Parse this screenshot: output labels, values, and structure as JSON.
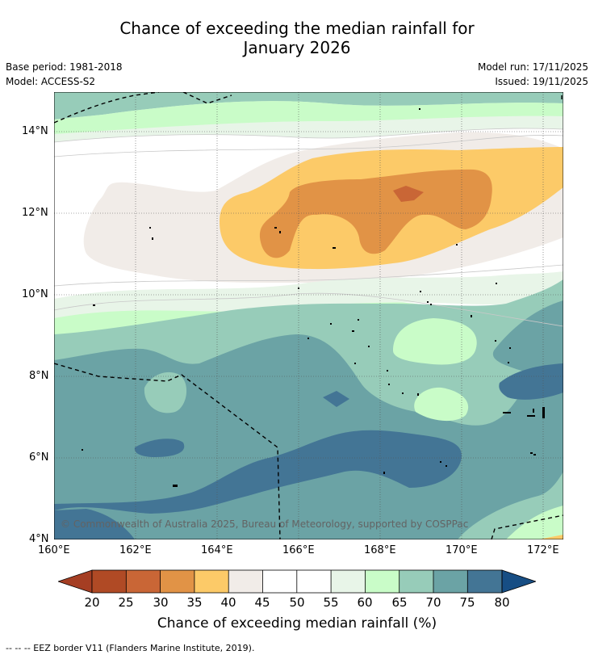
{
  "title": {
    "line1": "Chance of exceeding the median rainfall for",
    "line2": "January 2026"
  },
  "meta": {
    "base_period": "Base period: 1981-2018",
    "model": "Model: ACCESS-S2",
    "model_run": "Model run: 17/11/2025",
    "issued": "Issued: 19/11/2025"
  },
  "map": {
    "lat_labels": [
      "14°N",
      "12°N",
      "10°N",
      "8°N",
      "6°N",
      "4°N"
    ],
    "lon_labels": [
      "160°E",
      "162°E",
      "164°E",
      "166°E",
      "168°E",
      "170°E",
      "172°E"
    ],
    "copyright": "© Commonwealth of Australia 2025, Bureau of Meteorology, supported by COSPPac",
    "colors": {
      "c20": "#a53e23",
      "c25": "#b04a25",
      "c30": "#c96636",
      "c35": "#e19346",
      "c40": "#fcca68",
      "c45": "#f1ece8",
      "c50": "#ffffff",
      "c55": "#ffffff",
      "c60": "#e8f5e8",
      "c65": "#c9fcc8",
      "c70": "#97ccb9",
      "c75": "#6ba3a5",
      "c80": "#437595",
      "c85": "#174e84"
    }
  },
  "colorbar": {
    "labels": [
      "20",
      "25",
      "30",
      "35",
      "40",
      "45",
      "50",
      "55",
      "60",
      "65",
      "70",
      "75",
      "80"
    ],
    "title": "Chance of exceeding median rainfall (%)"
  },
  "footer": {
    "legend": "--  --  -- EEZ border V11 (Flanders Marine Institute, 2019)."
  }
}
